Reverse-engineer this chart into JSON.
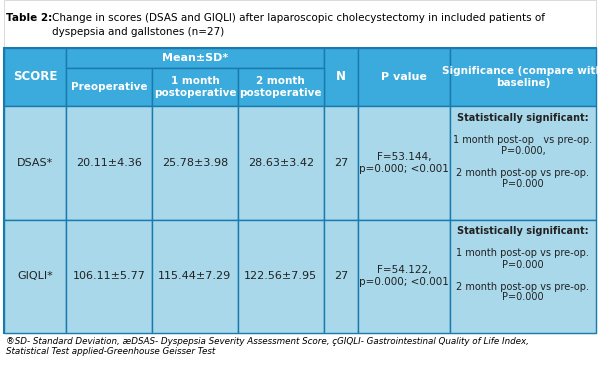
{
  "title_bold": "Table 2:",
  "title_normal": "  Change in scores (DSAS and GIQLI) after laparoscopic cholecystectomy in included patients of\n\tdyspepsia and gallstones (n=27)",
  "header_bg": "#3aabdc",
  "data_bg": "#a8d8ea",
  "border_color": "#1a7aad",
  "score_col": "SCORE",
  "mean_sd_label": "Mean±SD*",
  "subheaders": [
    "Preoperative",
    "1 month\npostoperative",
    "2 month\npostoperative"
  ],
  "n_col": "N",
  "p_col": "P value",
  "sig_col": "Significance (compare with\nbaseline)",
  "rows": [
    {
      "score": "DSAS*",
      "pre": "20.11±4.36",
      "m1": "25.78±3.98",
      "m2": "28.63±3.42",
      "n": "27",
      "p": "F=53.144,\np=0.000; <0.001",
      "sig_lines": [
        "Statistically significant:",
        "",
        "1 month post-op   vs pre-op.",
        "P=0.000,",
        "",
        "2 month post-op vs pre-op.",
        "P=0.000"
      ]
    },
    {
      "score": "GIQLI*",
      "pre": "106.11±5.77",
      "m1": "115.44±7.29",
      "m2": "122.56±7.95",
      "n": "27",
      "p": "F=54.122,\np=0.000; <0.001",
      "sig_lines": [
        "Statistically significant:",
        "",
        "1 month post-op vs pre-op.",
        "P=0.000",
        "",
        "2 month post-op vs pre-op.",
        "P=0.000"
      ]
    }
  ],
  "footnote": "*SD- Standard Deviation, *DSAS- Dyspepsia Severity Assessment Score, *GIQLI- Gastrointestinal Quality of Life Index,\nStatistical Test applied-Greenhouse Geisser Test",
  "col_props": [
    0.105,
    0.145,
    0.145,
    0.145,
    0.058,
    0.155,
    0.247
  ]
}
